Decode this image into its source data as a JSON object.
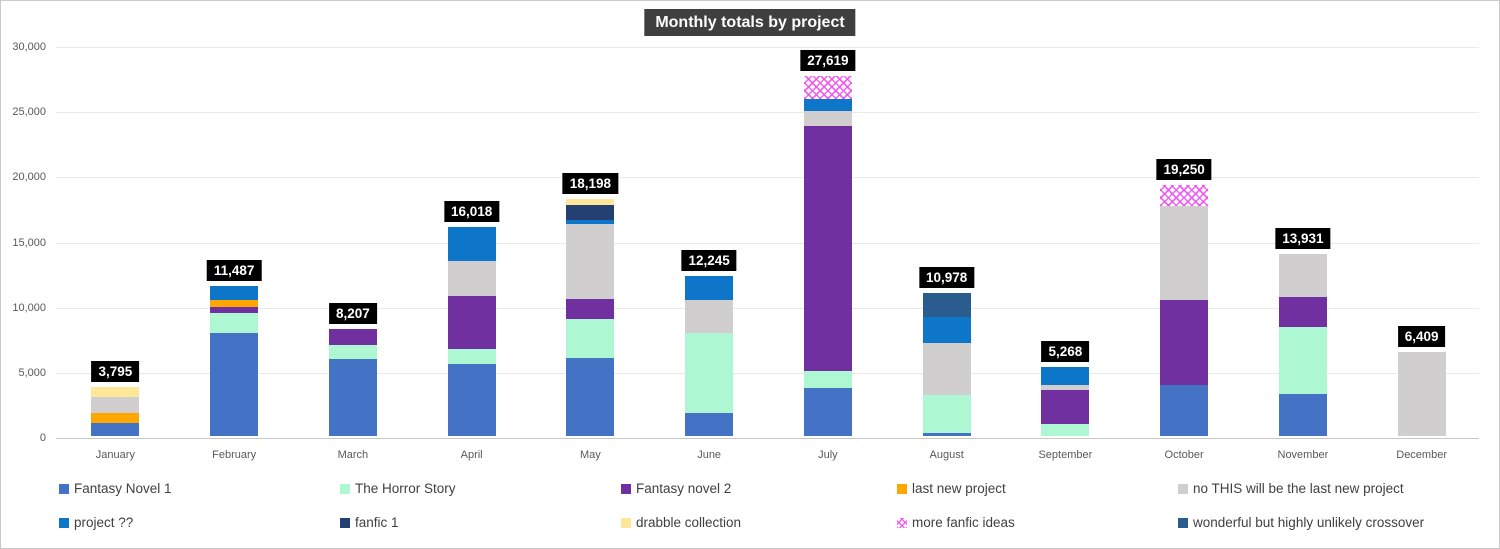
{
  "chart_data": {
    "type": "bar",
    "stacked": true,
    "title": "Monthly totals by project",
    "xlabel": "",
    "ylabel": "",
    "ylim": [
      0,
      30000
    ],
    "y_step": 5000,
    "grid": true,
    "legend_position": "bottom",
    "y_ticks": [
      {
        "label": "30,000",
        "value": 30000
      },
      {
        "label": "25,000",
        "value": 25000
      },
      {
        "label": "20,000",
        "value": 20000
      },
      {
        "label": "15,000",
        "value": 15000
      },
      {
        "label": "10,000",
        "value": 10000
      },
      {
        "label": "5,000",
        "value": 5000
      },
      {
        "label": "0",
        "value": 0
      }
    ],
    "categories": [
      "January",
      "February",
      "March",
      "April",
      "May",
      "June",
      "July",
      "August",
      "September",
      "October",
      "November",
      "December"
    ],
    "totals": [
      3795,
      11487,
      8207,
      16018,
      18198,
      12245,
      27619,
      10978,
      5268,
      19250,
      13931,
      6409
    ],
    "total_labels": [
      "3,795",
      "11,487",
      "8,207",
      "16,018",
      "18,198",
      "12,245",
      "27,619",
      "10,978",
      "5,268",
      "19,250",
      "13,931",
      "6,409"
    ],
    "series": [
      {
        "name": "Fantasy Novel 1",
        "color": "#4472c4",
        "pattern": false,
        "values": [
          1000,
          7900,
          5900,
          5550,
          5950,
          1800,
          3700,
          200,
          0,
          3900,
          3200,
          0
        ]
      },
      {
        "name": "The Horror Story",
        "color": "#adf7d2",
        "pattern": false,
        "values": [
          0,
          1540,
          1075,
          1100,
          2990,
          6100,
          1300,
          2950,
          950,
          0,
          5200,
          0
        ]
      },
      {
        "name": "Fantasy novel 2",
        "color": "#7030a0",
        "pattern": false,
        "values": [
          0,
          460,
          1232,
          4100,
          1590,
          0,
          18750,
          0,
          2600,
          6500,
          2280,
          0
        ]
      },
      {
        "name": "last new project",
        "color": "#ffa600",
        "pattern": false,
        "values": [
          800,
          560,
          0,
          0,
          0,
          0,
          0,
          0,
          0,
          0,
          0,
          0
        ]
      },
      {
        "name": "no THIS will be the last new project",
        "color": "#d0cece",
        "pattern": false,
        "values": [
          1225,
          0,
          0,
          2700,
          5730,
          2545,
          1220,
          3950,
          330,
          7250,
          3251,
          6409
        ]
      },
      {
        "name": "project ??",
        "color": "#0e76c8",
        "pattern": false,
        "values": [
          0,
          1027,
          0,
          2568,
          300,
          1800,
          850,
          2000,
          1388,
          0,
          0,
          0
        ]
      },
      {
        "name": "fanfic 1",
        "color": "#243f72",
        "pattern": false,
        "values": [
          0,
          0,
          0,
          0,
          1200,
          0,
          0,
          0,
          0,
          0,
          0,
          0
        ]
      },
      {
        "name": "drabble collection",
        "color": "#ffe699",
        "pattern": false,
        "values": [
          770,
          0,
          0,
          0,
          438,
          0,
          0,
          0,
          0,
          0,
          0,
          0
        ]
      },
      {
        "name": "more fanfic ideas",
        "color": "#f050f0",
        "pattern": true,
        "values": [
          0,
          0,
          0,
          0,
          0,
          0,
          1799,
          0,
          0,
          1600,
          0,
          0
        ]
      },
      {
        "name": "wonderful but highly unlikely crossover",
        "color": "#2a5d8e",
        "pattern": false,
        "values": [
          0,
          0,
          0,
          0,
          0,
          0,
          0,
          1878,
          0,
          0,
          0,
          0
        ]
      }
    ]
  }
}
